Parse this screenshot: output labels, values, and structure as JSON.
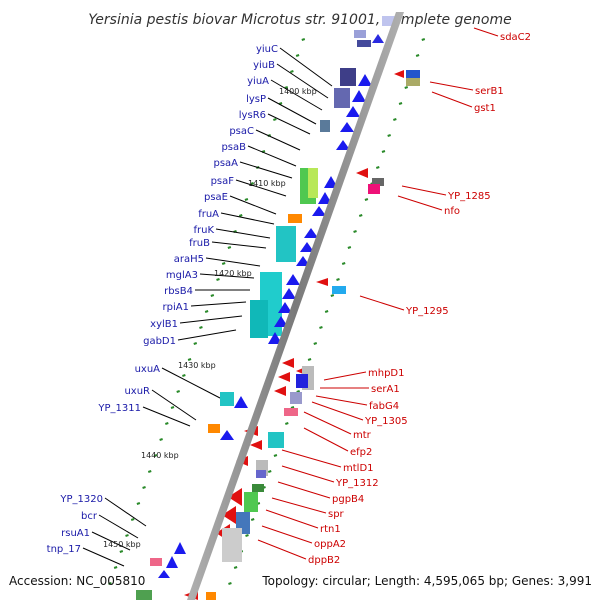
{
  "title": "Yersinia pestis biovar Microtus str. 91001, complete genome",
  "footer": {
    "accession": "Accession: NC_005810",
    "summary": "Topology: circular; Length: 4,595,065 bp; Genes: 3,991"
  },
  "colors": {
    "backbone": "#8a8a8a",
    "left_labels": "#1a1aa8",
    "right_labels": "#cc0000",
    "tick": "#2a8a2a"
  },
  "kbp_ticks": [
    "1400 kbp",
    "1410 kbp",
    "1420 kbp",
    "1430 kbp",
    "1440 kbp",
    "1450 kbp"
  ],
  "left_genes": [
    "yiuC",
    "yiuB",
    "yiuA",
    "lysP",
    "lysR6",
    "psaC",
    "psaB",
    "psaA",
    "psaF",
    "psaE",
    "fruA",
    "fruK",
    "fruB",
    "araH5",
    "mglA3",
    "rbsB4",
    "rpiA1",
    "xylB1",
    "gabD1",
    "uxuA",
    "uxuR",
    "YP_1311",
    "YP_1320",
    "bcr",
    "rsuA1",
    "tnp_17"
  ],
  "right_genes": [
    "sdaC2",
    "serB1",
    "gst1",
    "YP_1285",
    "nfo",
    "YP_1295",
    "mhpD1",
    "serA1",
    "fabG4",
    "YP_1305",
    "mtr",
    "efp2",
    "mtlD1",
    "YP_1312",
    "pgpB4",
    "spr",
    "rtn1",
    "oppA2",
    "dppB2"
  ]
}
